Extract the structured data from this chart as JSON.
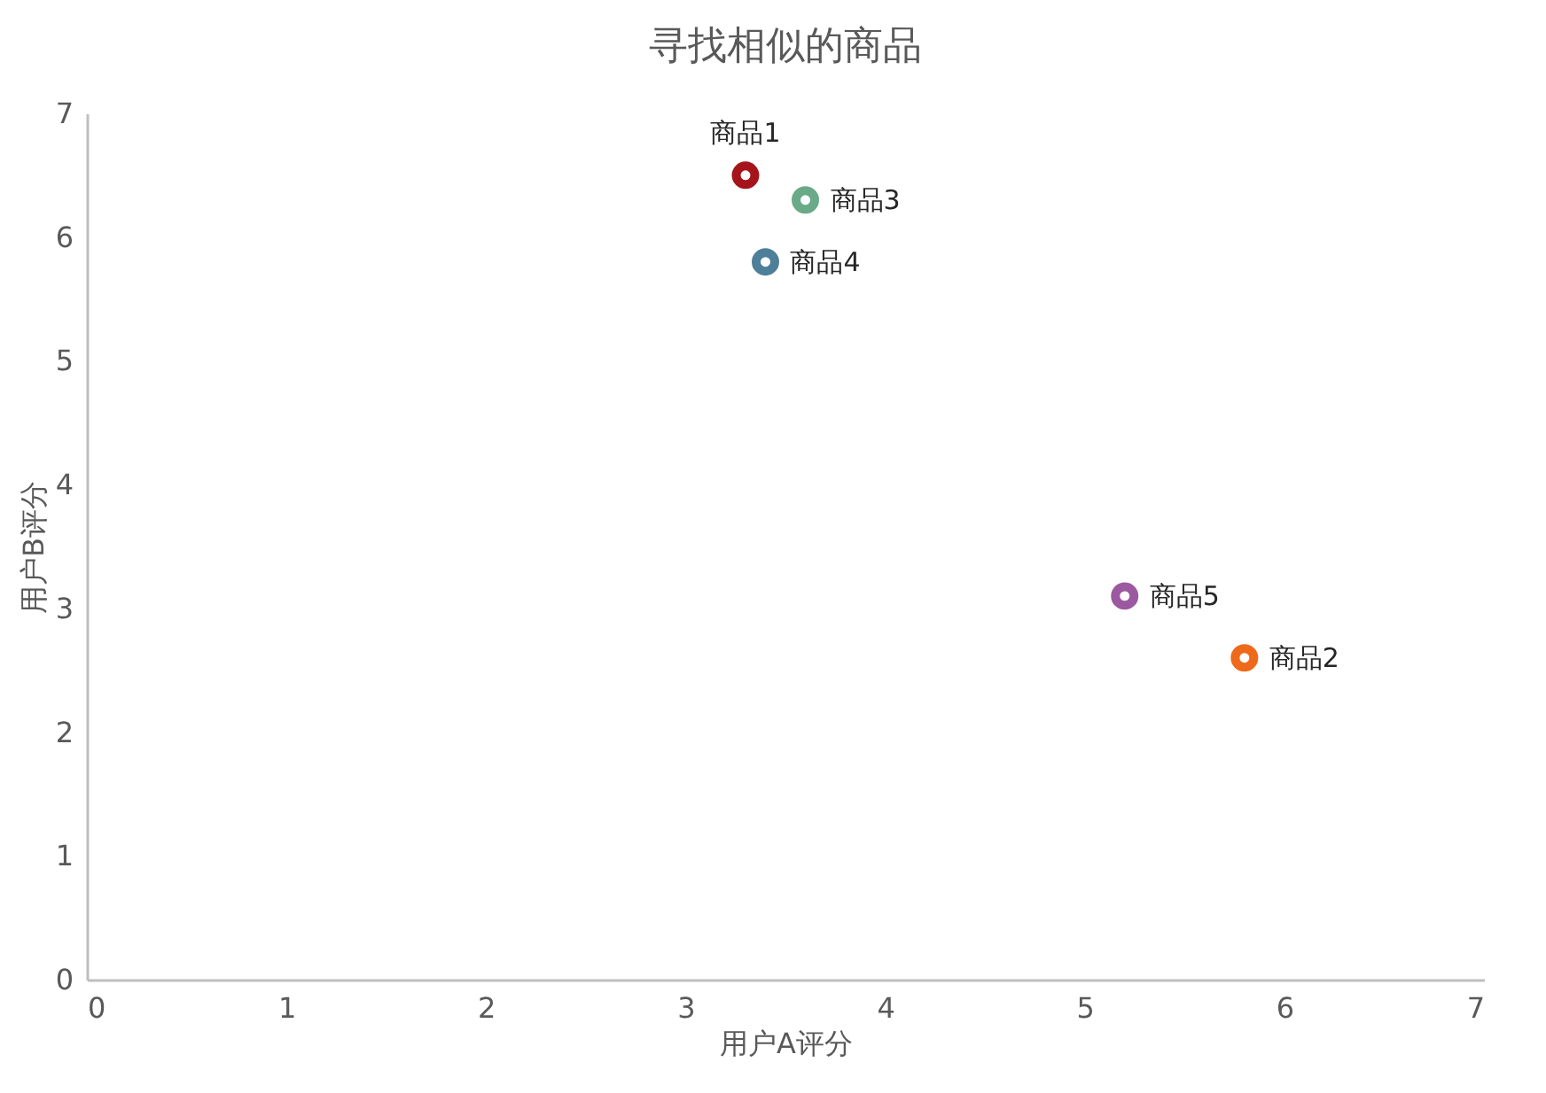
{
  "chart_data": {
    "type": "scatter",
    "title": "寻找相似的商品",
    "xlabel": "用户A评分",
    "ylabel": "用户B评分",
    "xlim": [
      0,
      7
    ],
    "xticks": [
      0,
      1,
      2,
      3,
      4,
      5,
      6,
      7
    ],
    "ylim": [
      0,
      7
    ],
    "yticks": [
      0,
      1,
      2,
      3,
      4,
      5,
      6,
      7
    ],
    "grid": false,
    "marker": "circle",
    "series": [
      {
        "name": "商品1",
        "color": "#a5141b",
        "x": [
          3.3
        ],
        "values": [
          6.5
        ]
      },
      {
        "name": "商品2",
        "color": "#ee6a1a",
        "x": [
          5.8
        ],
        "values": [
          2.6
        ]
      },
      {
        "name": "商品3",
        "color": "#6aaa88",
        "x": [
          3.6
        ],
        "values": [
          6.3
        ]
      },
      {
        "name": "商品4",
        "color": "#4e7f99",
        "x": [
          3.4
        ],
        "values": [
          5.8
        ]
      },
      {
        "name": "商品5",
        "color": "#9b59a0",
        "x": [
          5.2
        ],
        "values": [
          3.1
        ]
      }
    ]
  }
}
